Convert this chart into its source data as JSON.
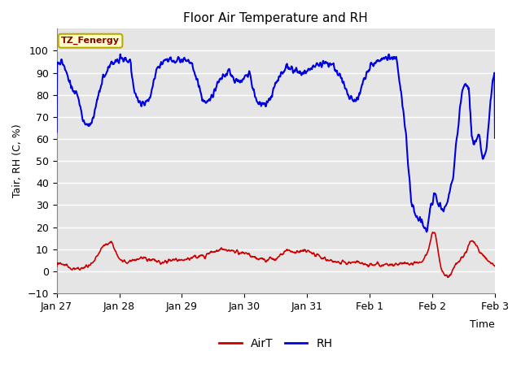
{
  "title": "Floor Air Temperature and RH",
  "xlabel": "Time",
  "ylabel": "Tair, RH (C, %)",
  "ylim": [
    -10,
    110
  ],
  "yticks": [
    -10,
    0,
    10,
    20,
    30,
    40,
    50,
    60,
    70,
    80,
    90,
    100
  ],
  "annotation": "TZ_Fenergy",
  "background_color": "#ffffff",
  "plot_bg_color": "#e5e5e5",
  "grid_color": "#ffffff",
  "air_color": "#cc0000",
  "rh_color": "#0000dd",
  "legend_labels": [
    "AirT",
    "RH"
  ],
  "x_tick_labels": [
    "Jan 27",
    "Jan 28",
    "Jan 29",
    "Jan 30",
    "Jan 31",
    "Feb 1",
    "Feb 2",
    "Feb 3"
  ],
  "x_tick_positions": [
    0,
    24,
    48,
    72,
    96,
    120,
    144,
    168
  ]
}
